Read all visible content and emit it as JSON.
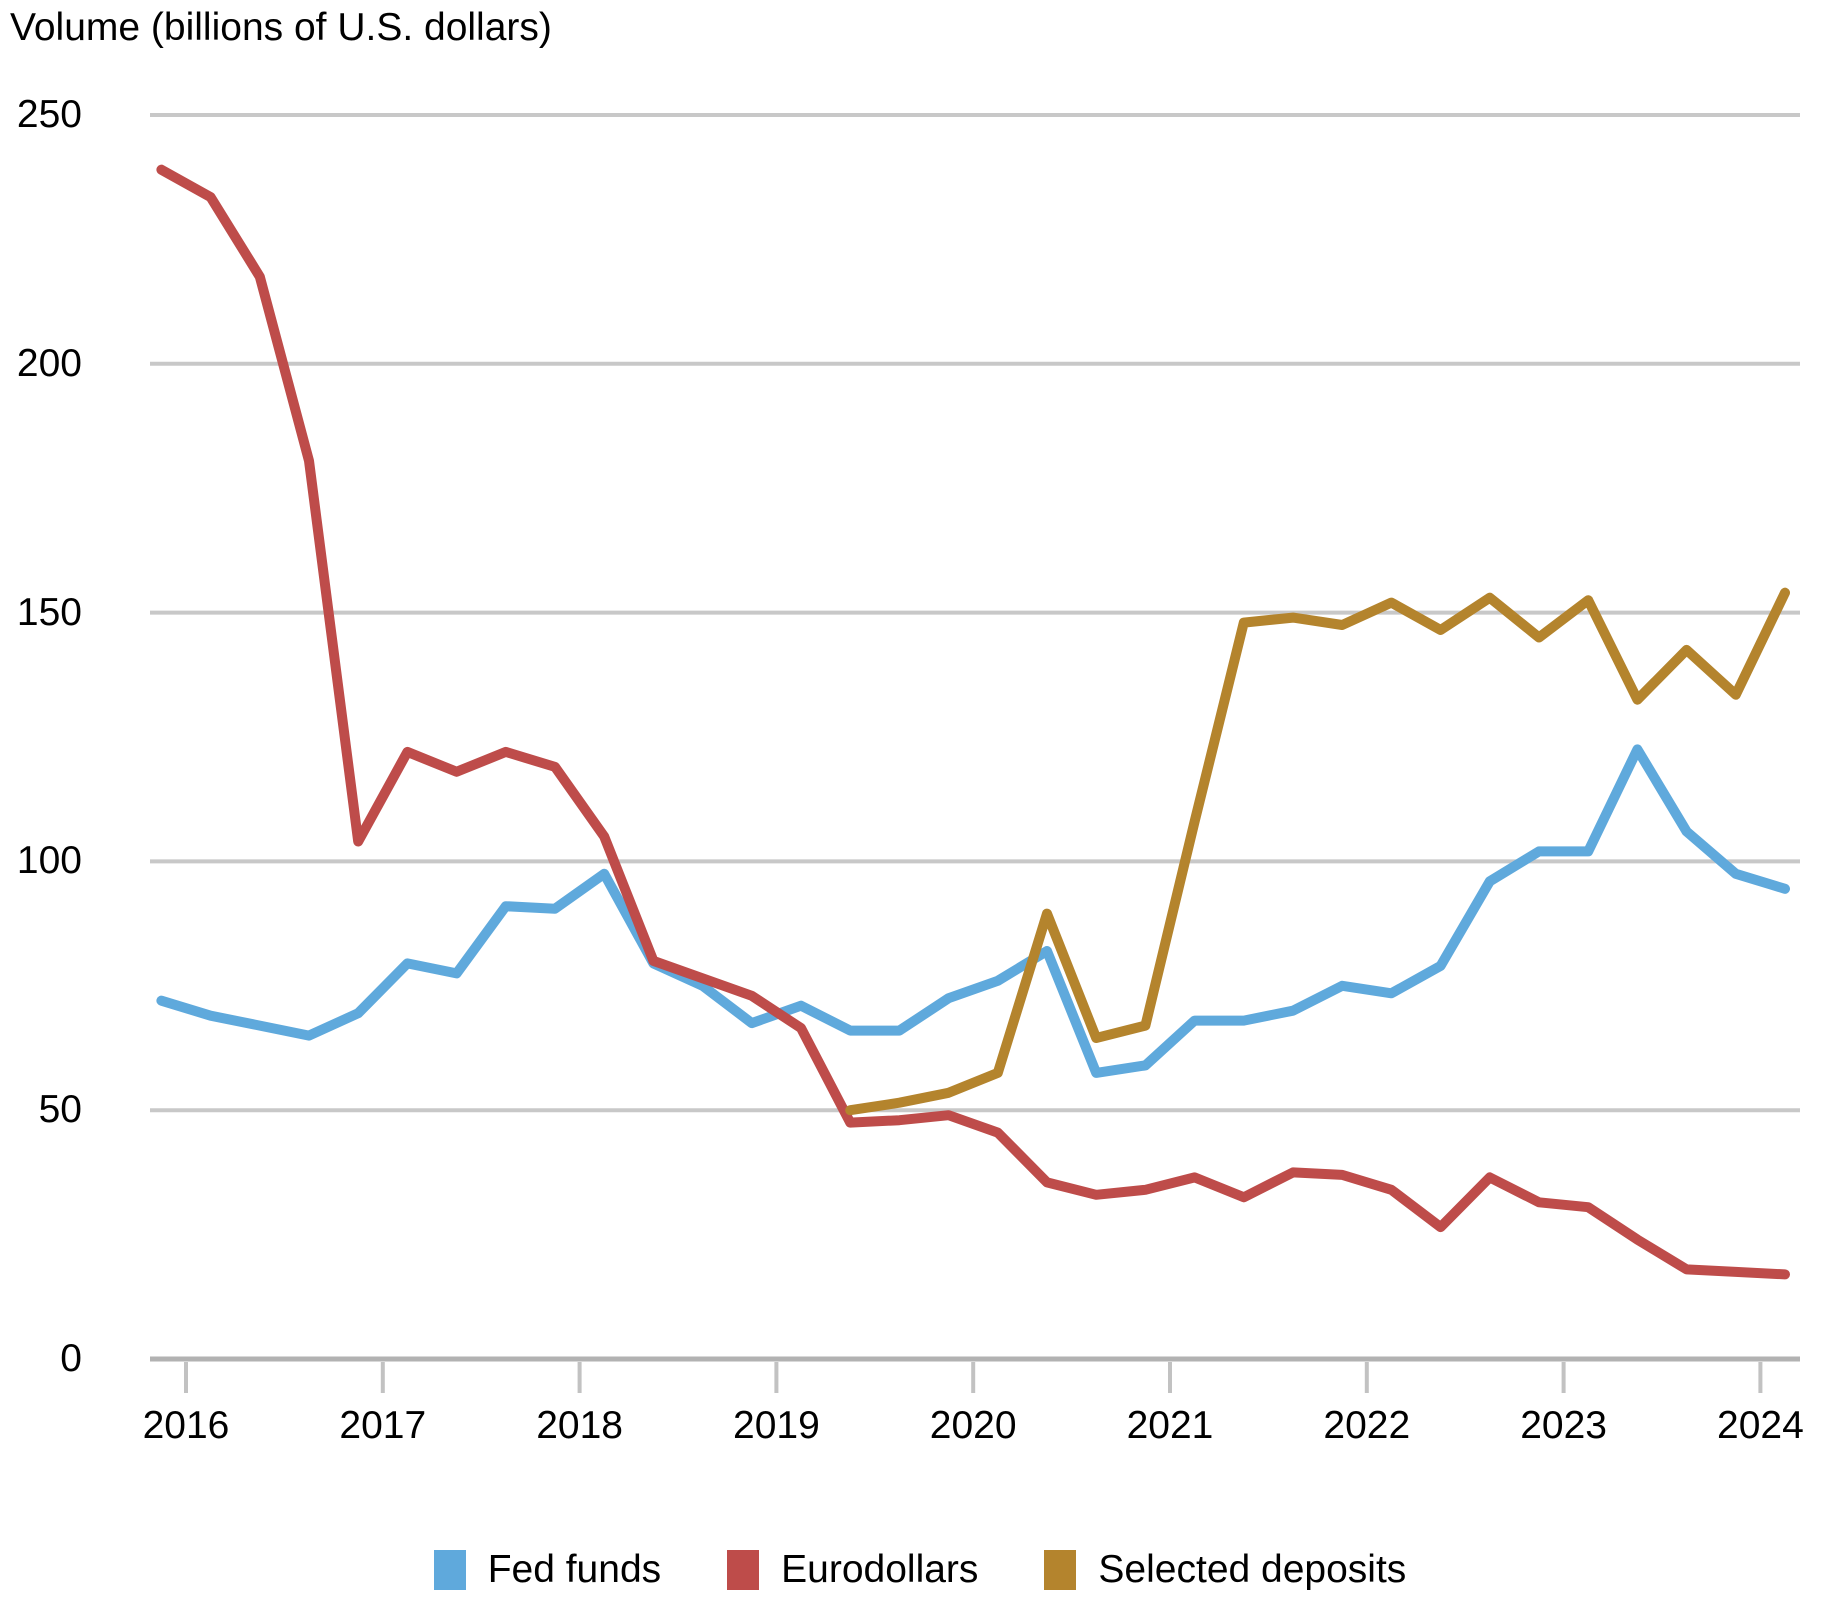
{
  "title": "Volume (billions of U.S. dollars)",
  "colors": {
    "fed_funds": "#5FA9DC",
    "eurodollars": "#BE4C4A",
    "selected_deposits": "#B4842D",
    "gridline": "#C8C8C8",
    "axis_line": "#B2B2B2",
    "tick_mark": "#C2C2C2",
    "text": "#000000",
    "background": "#FFFFFF"
  },
  "legend": {
    "items": [
      {
        "label": "Fed funds",
        "color": "#5FA9DC"
      },
      {
        "label": "Eurodollars",
        "color": "#BE4C4A"
      },
      {
        "label": "Selected deposits",
        "color": "#B4842D"
      }
    ]
  },
  "chart_data": {
    "type": "line",
    "title": "Volume (billions of U.S. dollars)",
    "ylabel": "Volume (billions of U.S. dollars)",
    "xlabel": "",
    "ylim": [
      0,
      250
    ],
    "yticks": [
      0,
      50,
      100,
      150,
      200,
      250
    ],
    "xticks": [
      "2016",
      "2017",
      "2018",
      "2019",
      "2020",
      "2021",
      "2022",
      "2023",
      "2024"
    ],
    "grid": "horizontal",
    "legend_position": "bottom",
    "x_unit": "quarterly, plotted at quarter midpoints",
    "categories": [
      "2015 Q4",
      "2016 Q1",
      "2016 Q2",
      "2016 Q3",
      "2016 Q4",
      "2017 Q1",
      "2017 Q2",
      "2017 Q3",
      "2017 Q4",
      "2018 Q1",
      "2018 Q2",
      "2018 Q3",
      "2018 Q4",
      "2019 Q1",
      "2019 Q2",
      "2019 Q3",
      "2019 Q4",
      "2020 Q1",
      "2020 Q2",
      "2020 Q3",
      "2020 Q4",
      "2021 Q1",
      "2021 Q2",
      "2021 Q3",
      "2021 Q4",
      "2022 Q1",
      "2022 Q2",
      "2022 Q3",
      "2022 Q4",
      "2023 Q1",
      "2023 Q2",
      "2023 Q3",
      "2023 Q4",
      "2024 Q1"
    ],
    "series": [
      {
        "name": "Fed funds",
        "color": "#5FA9DC",
        "values": [
          72,
          69,
          67,
          65,
          69.5,
          79.5,
          77.5,
          91,
          90.5,
          97.5,
          79.5,
          75,
          67.5,
          71,
          66,
          66,
          72.5,
          76,
          82,
          57.5,
          59,
          68,
          68,
          70,
          75,
          73.5,
          79,
          96,
          102,
          102,
          122.5,
          106,
          97.5,
          94.5
        ]
      },
      {
        "name": "Eurodollars",
        "color": "#BE4C4A",
        "values": [
          239,
          233.5,
          217.5,
          180.5,
          104,
          122,
          118,
          122,
          119,
          105,
          80,
          76.5,
          73,
          66.5,
          47.5,
          48,
          49,
          45.5,
          35.5,
          33,
          34,
          36.5,
          32.5,
          37.5,
          37,
          34,
          26.5,
          36.5,
          31.5,
          30.5,
          24,
          18,
          17.5,
          17
        ]
      },
      {
        "name": "Selected deposits",
        "color": "#B4842D",
        "values": [
          null,
          null,
          null,
          null,
          null,
          null,
          null,
          null,
          null,
          null,
          null,
          null,
          null,
          null,
          50,
          51.5,
          53.5,
          57.5,
          89.5,
          64.5,
          67,
          108,
          148,
          149,
          147.5,
          152,
          146.5,
          153,
          145,
          152.5,
          132.5,
          142.5,
          133.5,
          154
        ]
      }
    ]
  }
}
